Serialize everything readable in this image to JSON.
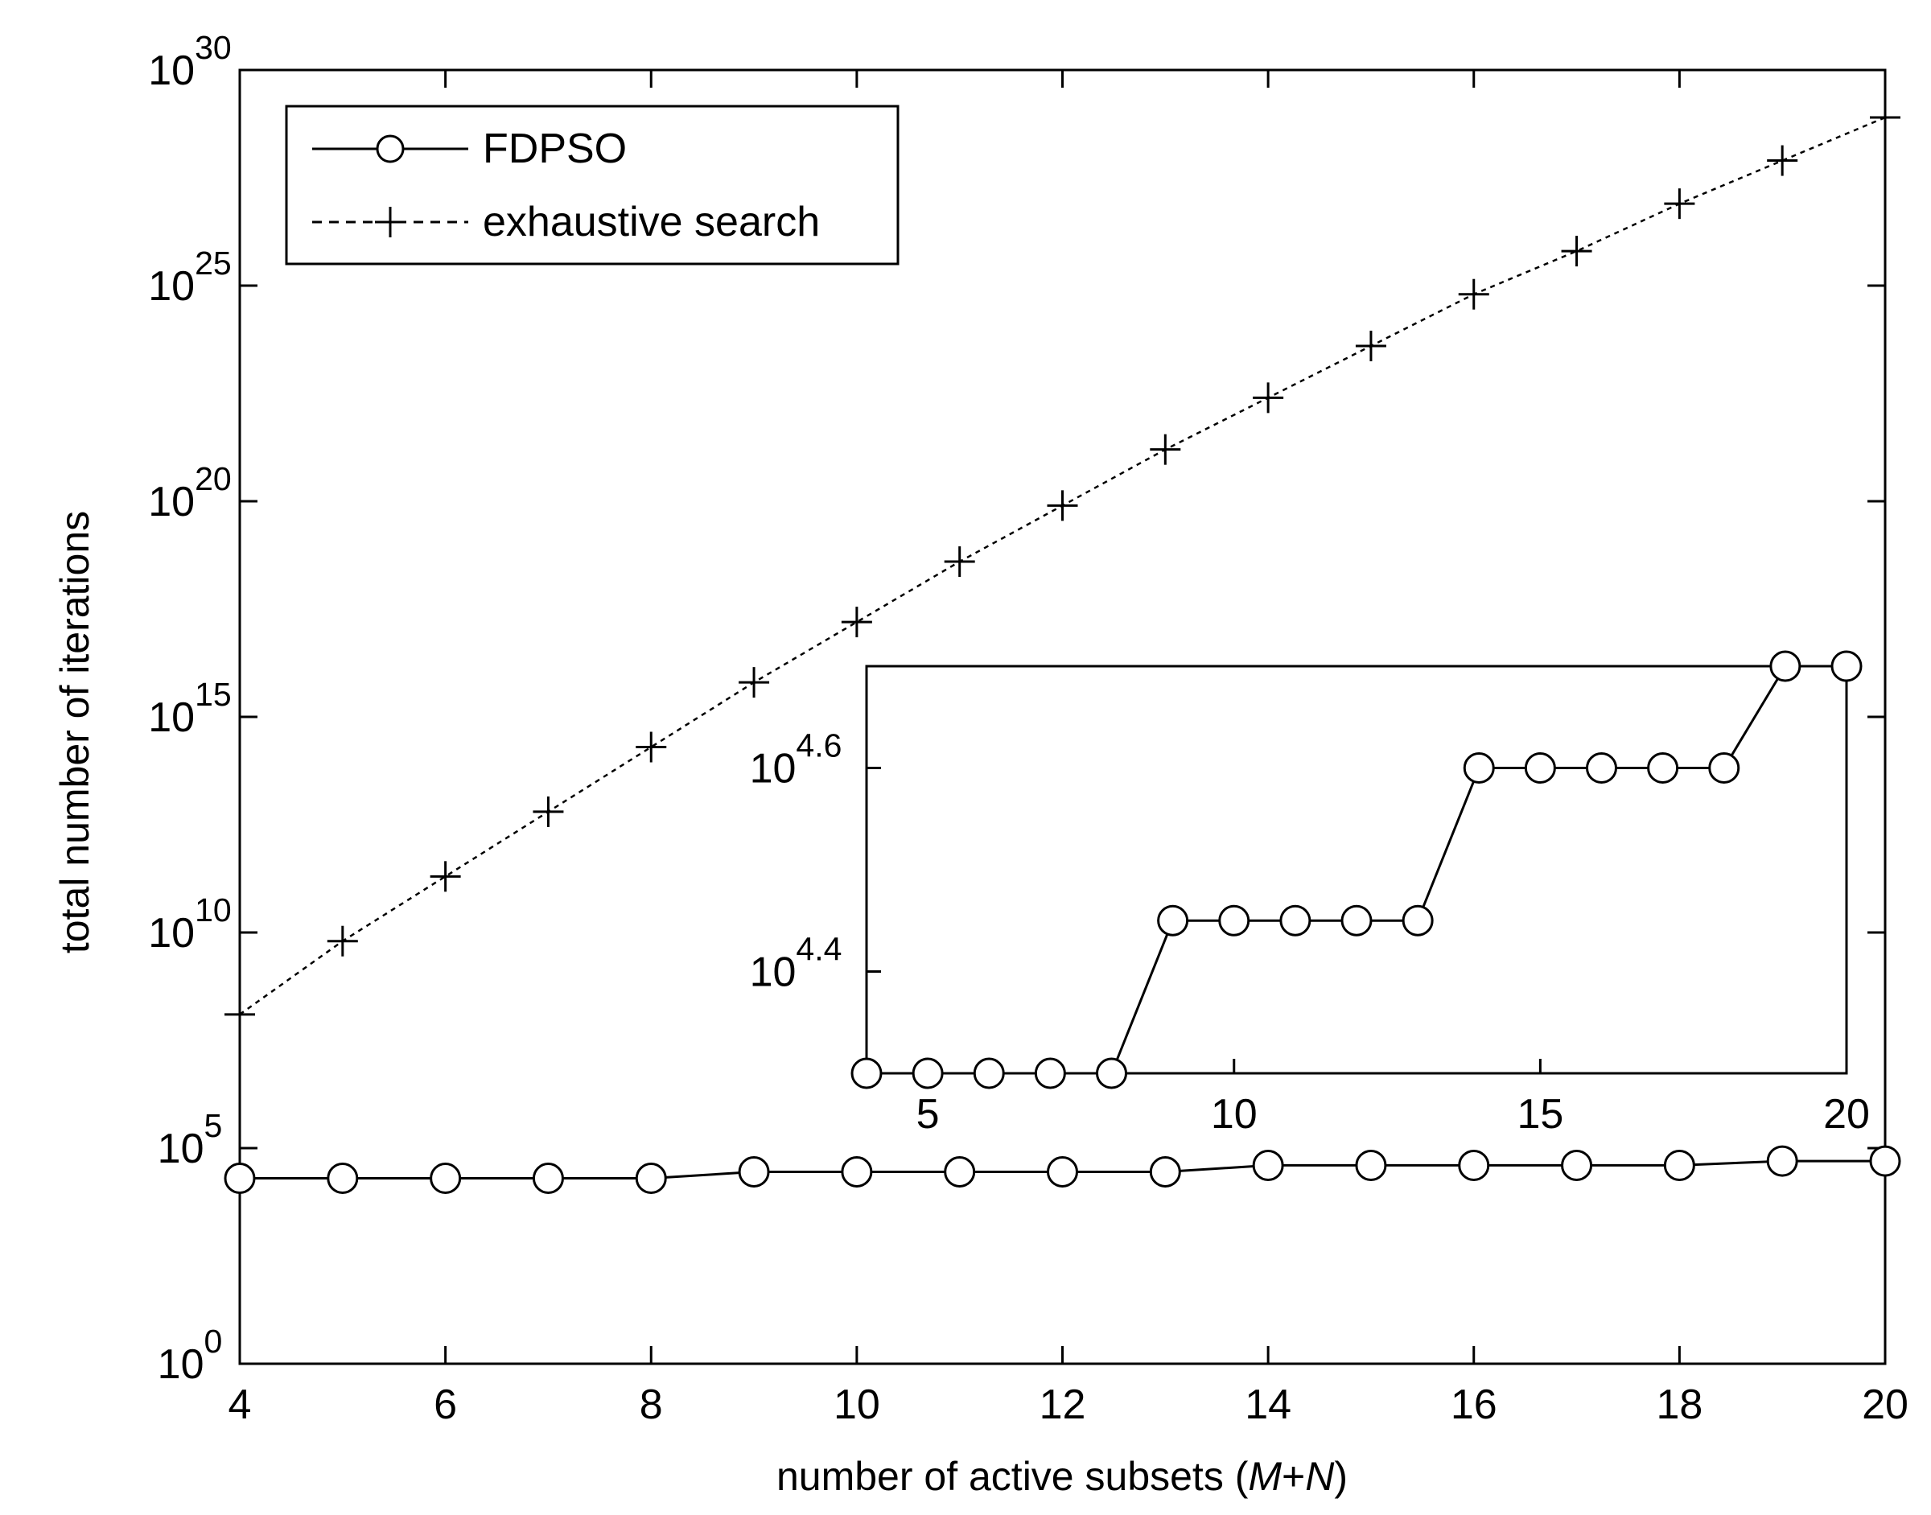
{
  "chart_data": [
    {
      "type": "line",
      "xlabel_pre": "number of active subsets (",
      "xlabel_var1": "M",
      "xlabel_plus": "+",
      "xlabel_var2": "N",
      "xlabel_post": ")",
      "ylabel": "total number of iterations",
      "xlim": [
        4,
        20
      ],
      "ylim": [
        1,
        1e+30
      ],
      "yscale": "log",
      "xticks": [
        4,
        6,
        8,
        10,
        12,
        14,
        16,
        18,
        20
      ],
      "yticks": [
        {
          "base": "10",
          "exp": "0"
        },
        {
          "base": "10",
          "exp": "5"
        },
        {
          "base": "10",
          "exp": "10"
        },
        {
          "base": "10",
          "exp": "15"
        },
        {
          "base": "10",
          "exp": "20"
        },
        {
          "base": "10",
          "exp": "25"
        },
        {
          "base": "10",
          "exp": "30"
        }
      ],
      "legend_position": "top-left",
      "series": [
        {
          "name": "FDPSO",
          "line": "solid",
          "marker": "circle",
          "x": [
            4,
            5,
            6,
            7,
            8,
            9,
            10,
            11,
            12,
            13,
            14,
            15,
            16,
            17,
            18,
            19,
            20
          ],
          "log10_y": [
            4.3,
            4.3,
            4.3,
            4.3,
            4.3,
            4.45,
            4.45,
            4.45,
            4.45,
            4.45,
            4.6,
            4.6,
            4.6,
            4.6,
            4.6,
            4.7,
            4.7
          ]
        },
        {
          "name": "exhaustive search",
          "line": "dotted",
          "marker": "plus",
          "x": [
            4,
            5,
            6,
            7,
            8,
            9,
            10,
            11,
            12,
            13,
            14,
            15,
            16,
            17,
            18,
            19,
            20
          ],
          "log10_y": [
            8.1,
            9.8,
            11.3,
            12.8,
            14.3,
            15.8,
            17.2,
            18.6,
            19.9,
            21.2,
            22.4,
            23.6,
            24.8,
            25.8,
            26.9,
            27.9,
            28.9
          ]
        }
      ]
    },
    {
      "type": "line",
      "role": "inset",
      "xlim": [
        4,
        20
      ],
      "yscale": "log",
      "log10_ylim": [
        4.3,
        4.7
      ],
      "xticks": [
        5,
        10,
        15,
        20
      ],
      "yticks": [
        {
          "base": "10",
          "exp": "4.4"
        },
        {
          "base": "10",
          "exp": "4.6"
        }
      ],
      "series": [
        {
          "name": "FDPSO",
          "line": "solid",
          "marker": "circle",
          "x": [
            4,
            5,
            6,
            7,
            8,
            9,
            10,
            11,
            12,
            13,
            14,
            15,
            16,
            17,
            18,
            19,
            20
          ],
          "log10_y": [
            4.3,
            4.3,
            4.3,
            4.3,
            4.3,
            4.45,
            4.45,
            4.45,
            4.45,
            4.45,
            4.6,
            4.6,
            4.6,
            4.6,
            4.6,
            4.7,
            4.7
          ]
        }
      ]
    }
  ]
}
